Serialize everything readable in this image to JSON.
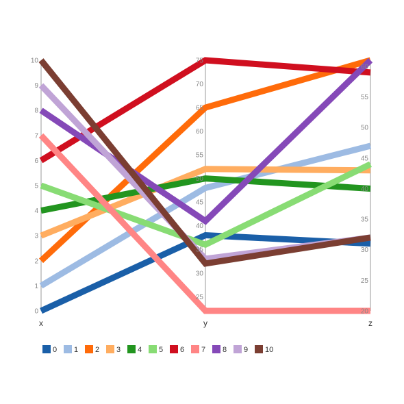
{
  "chart_data": {
    "type": "parallel-coordinates",
    "dimensions": [
      {
        "name": "x",
        "range": [
          0,
          10
        ],
        "ticks": [
          0,
          1,
          2,
          3,
          4,
          5,
          6,
          7,
          8,
          9,
          10
        ]
      },
      {
        "name": "y",
        "range": [
          22,
          75
        ],
        "ticks": [
          25,
          30,
          35,
          40,
          45,
          50,
          55,
          60,
          65,
          70,
          75
        ]
      },
      {
        "name": "z",
        "range": [
          20,
          61
        ],
        "ticks": [
          20,
          25,
          30,
          35,
          40,
          45,
          50,
          55,
          60
        ]
      }
    ],
    "series": [
      {
        "name": "0",
        "color": "#1a5fa8",
        "values": [
          0,
          38,
          31
        ]
      },
      {
        "name": "1",
        "color": "#9dbbe3",
        "values": [
          1,
          48,
          47
        ]
      },
      {
        "name": "2",
        "color": "#ff6b0a",
        "values": [
          2,
          65,
          61
        ]
      },
      {
        "name": "3",
        "color": "#ffad60",
        "values": [
          3,
          52,
          43
        ]
      },
      {
        "name": "4",
        "color": "#22951f",
        "values": [
          4,
          50,
          40
        ]
      },
      {
        "name": "5",
        "color": "#88dc74",
        "values": [
          5,
          36,
          44
        ]
      },
      {
        "name": "6",
        "color": "#d00f1f",
        "values": [
          6,
          75,
          59
        ]
      },
      {
        "name": "7",
        "color": "#ff8585",
        "values": [
          7,
          22,
          20
        ]
      },
      {
        "name": "8",
        "color": "#8549b8",
        "values": [
          8,
          41,
          61
        ]
      },
      {
        "name": "9",
        "color": "#c0a4d6",
        "values": [
          9,
          33,
          32
        ]
      },
      {
        "name": "10",
        "color": "#7b3e32",
        "values": [
          10,
          32,
          32
        ]
      }
    ],
    "legend_position": "bottom-left",
    "grid": false
  }
}
